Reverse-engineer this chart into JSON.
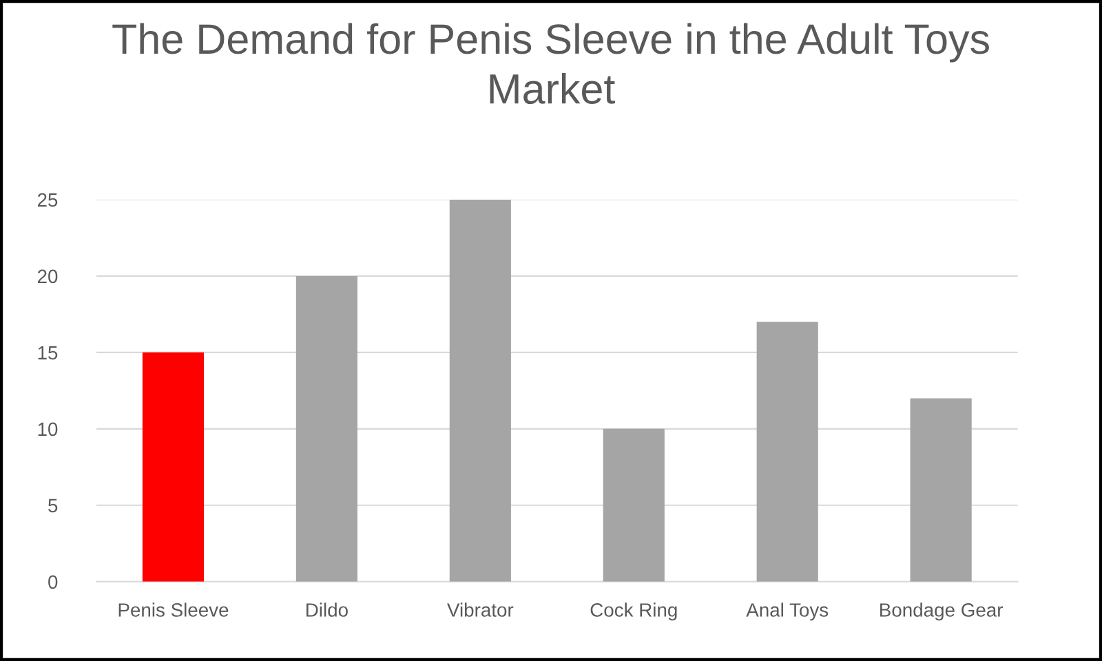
{
  "chart_data": {
    "type": "bar",
    "title": "The Demand for Penis Sleeve in the Adult Toys Market",
    "categories": [
      "Penis Sleeve",
      "Dildo",
      "Vibrator",
      "Cock Ring",
      "Anal Toys",
      "Bondage Gear"
    ],
    "values": [
      15,
      20,
      25,
      10,
      17,
      12
    ],
    "colors": [
      "#ff0000",
      "#a5a5a5",
      "#a5a5a5",
      "#a5a5a5",
      "#a5a5a5",
      "#a5a5a5"
    ],
    "ylim": [
      0,
      25
    ],
    "yticks": [
      0,
      5,
      10,
      15,
      20,
      25
    ],
    "grid": "y",
    "legend": false
  }
}
